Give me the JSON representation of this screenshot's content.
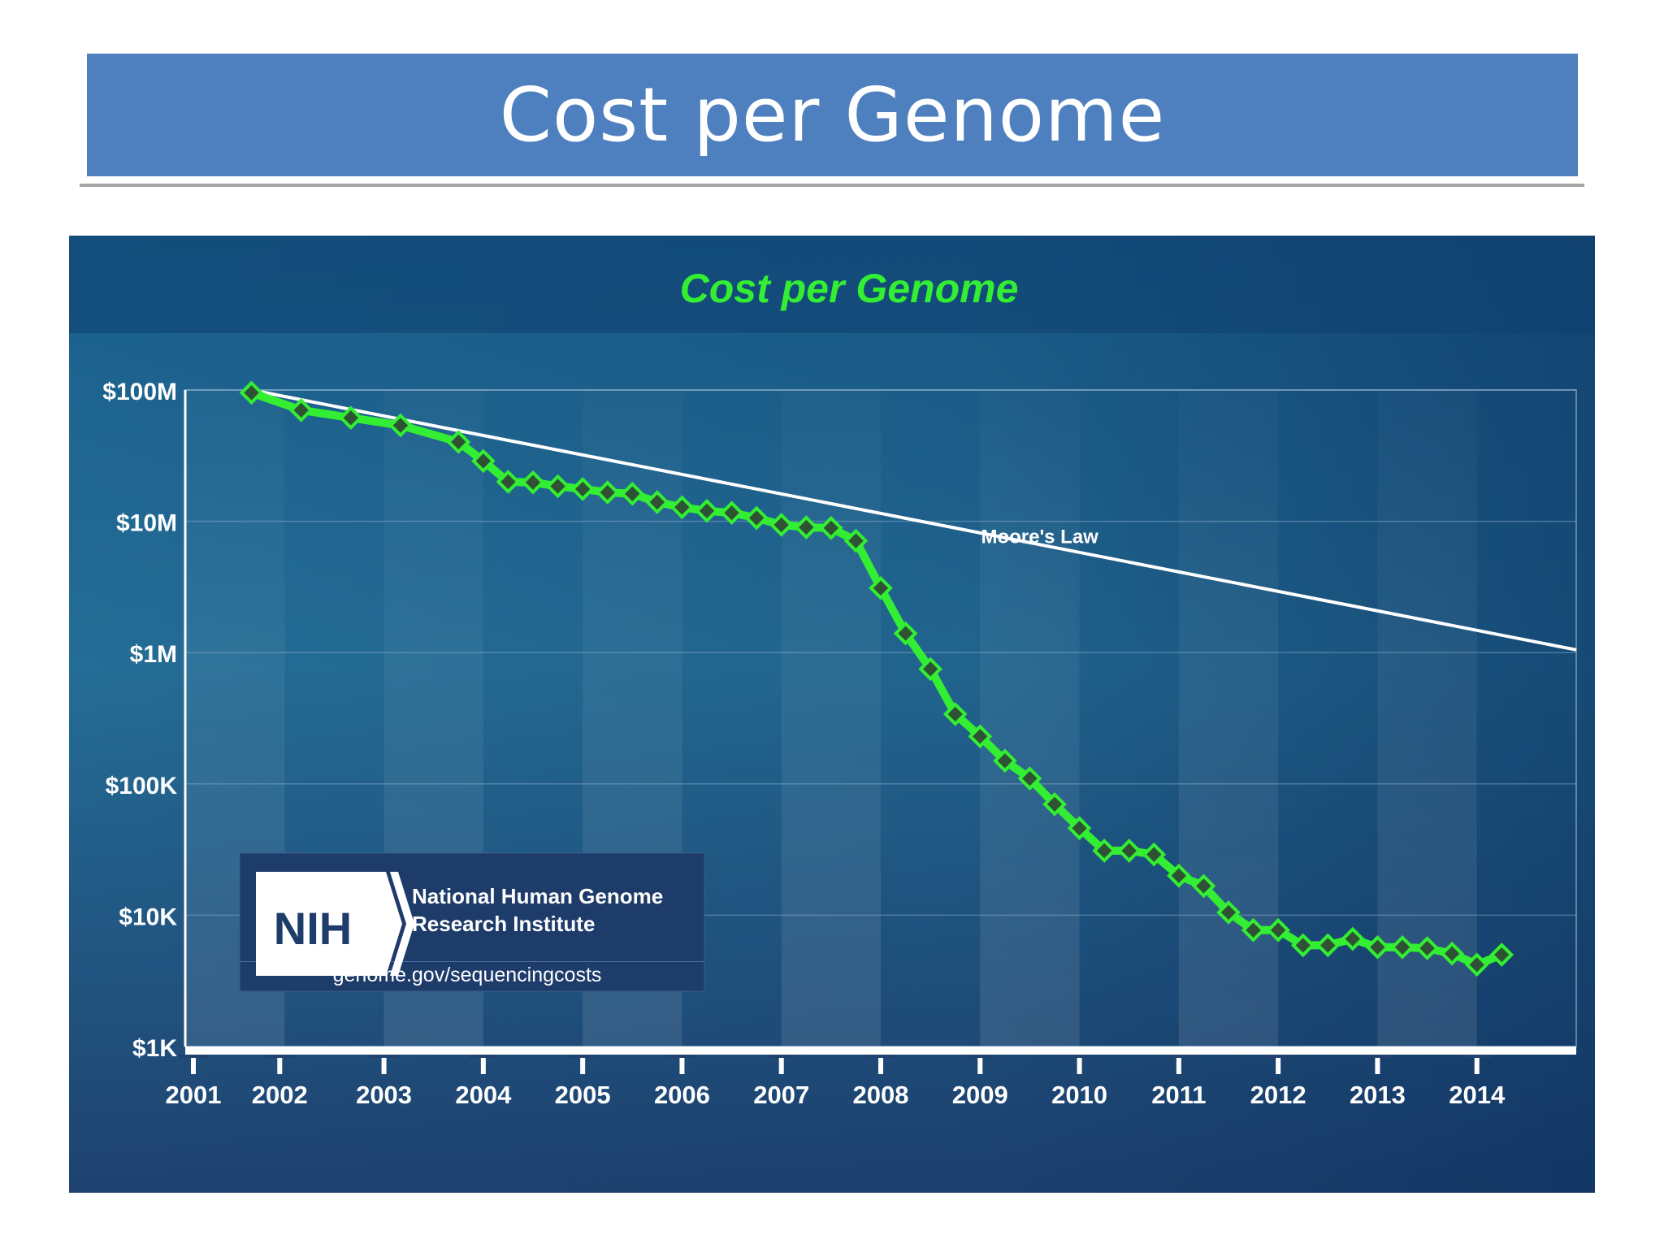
{
  "slide": {
    "title": "Cost per Genome"
  },
  "chart_data": {
    "type": "line",
    "title": "Cost per Genome",
    "xlabel": "",
    "ylabel": "",
    "y_scale": "log",
    "ylim": [
      1000,
      100000000
    ],
    "y_ticks": [
      {
        "value": 100000000,
        "label": "$100M"
      },
      {
        "value": 10000000,
        "label": "$10M"
      },
      {
        "value": 1000000,
        "label": "$1M"
      },
      {
        "value": 100000,
        "label": "$100K"
      },
      {
        "value": 10000,
        "label": "$10K"
      },
      {
        "value": 1000,
        "label": "$1K"
      }
    ],
    "x_ticks": [
      "2001",
      "2002",
      "2003",
      "2004",
      "2005",
      "2006",
      "2007",
      "2008",
      "2009",
      "2010",
      "2011",
      "2012",
      "2013",
      "2014"
    ],
    "grid": true,
    "series": [
      {
        "name": "",
        "color": "#33ee33",
        "marker": "diamond",
        "x": [
          "2001-09",
          "2002-03",
          "2002-09",
          "2003-03",
          "2003-10",
          "2004-01",
          "2004-04",
          "2004-07",
          "2004-10",
          "2005-01",
          "2005-04",
          "2005-07",
          "2005-10",
          "2006-01",
          "2006-04",
          "2006-07",
          "2006-10",
          "2007-01",
          "2007-04",
          "2007-07",
          "2007-10",
          "2008-01",
          "2008-04",
          "2008-07",
          "2008-10",
          "2009-01",
          "2009-04",
          "2009-07",
          "2009-10",
          "2010-01",
          "2010-04",
          "2010-07",
          "2010-10",
          "2011-01",
          "2011-04",
          "2011-07",
          "2011-10",
          "2012-01",
          "2012-04",
          "2012-07",
          "2012-10",
          "2013-01",
          "2013-04",
          "2013-07",
          "2013-10",
          "2014-01",
          "2014-04"
        ],
        "values": [
          95300000,
          70200000,
          61400000,
          53800000,
          40200000,
          28800000,
          20000000,
          19800000,
          18500000,
          17600000,
          16600000,
          16200000,
          14000000,
          12800000,
          12000000,
          11600000,
          10600000,
          9400000,
          9000000,
          8900000,
          7100000,
          3100000,
          1400000,
          750000,
          340000,
          230000,
          150000,
          110000,
          70000,
          46000,
          31000,
          31000,
          29000,
          20000,
          16700,
          10500,
          7700,
          7700,
          5900,
          5900,
          6600,
          5700,
          5700,
          5600,
          5100,
          4200,
          5000
        ]
      },
      {
        "name": "Moore's Law",
        "color": "#ffffff",
        "x": [
          "2001-09",
          "2015-01"
        ],
        "values": [
          100000000,
          1050000
        ]
      }
    ]
  },
  "logo": {
    "mark": "NIH",
    "line1": "National Human Genome",
    "line2": "Research Institute",
    "url": "genome.gov/sequencingcosts"
  },
  "colors": {
    "banner": "#4e7fbf",
    "panel_top": "#175c88",
    "panel_bottom": "#1f4270",
    "chart_title": "#33ee33",
    "series": "#33ee33",
    "marker_fill": "#2f5235",
    "moores_law": "#ffffff"
  }
}
